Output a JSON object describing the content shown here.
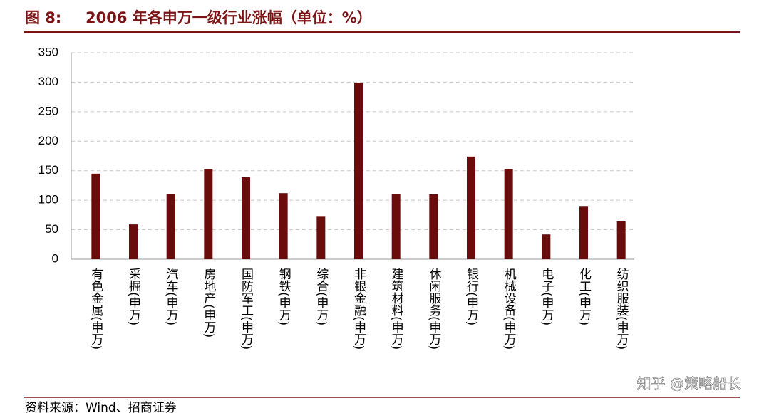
{
  "chart_data": {
    "type": "bar",
    "figure_label": "图 8:",
    "title": "2006 年各申万一级行业涨幅（单位：%）",
    "source": "资料来源：Wind、招商证券",
    "watermark": "知乎 @策略船长",
    "categories": [
      "有色金属(申万)",
      "采掘(申万)",
      "汽车(申万)",
      "房地产(申万)",
      "国防军工(申万)",
      "钢铁(申万)",
      "综合(申万)",
      "非银金融(申万)",
      "建筑材料(申万)",
      "休闲服务(申万)",
      "银行(申万)",
      "机械设备(申万)",
      "电子(申万)",
      "化工(申万)",
      "纺织服装(申万)"
    ],
    "values": [
      145,
      59,
      111,
      153,
      139,
      112,
      72,
      299,
      111,
      110,
      174,
      153,
      42,
      89,
      64
    ],
    "color": "#6b0c0c",
    "ylim": [
      0,
      350
    ],
    "yticks": [
      0,
      50,
      100,
      150,
      200,
      250,
      300,
      350
    ],
    "grid": true
  }
}
